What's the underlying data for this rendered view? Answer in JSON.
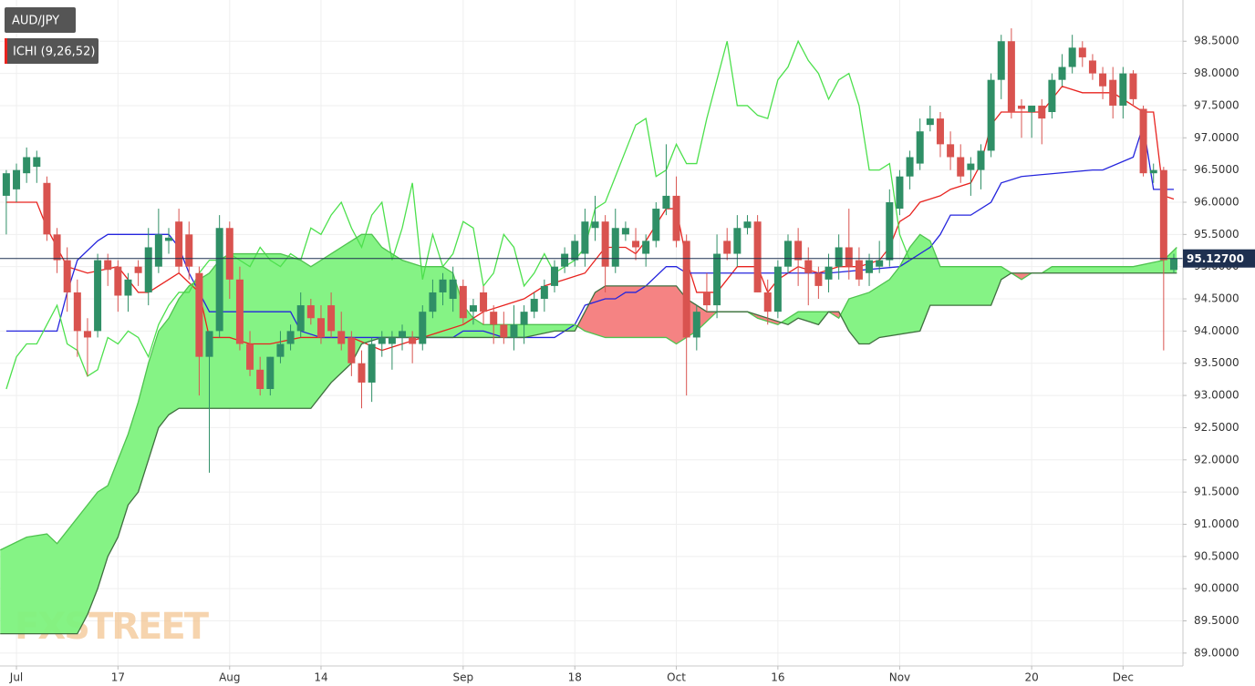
{
  "chart_data": {
    "type": "candlestick",
    "symbol": "AUD/JPY",
    "indicator": "ICHI (9,26,52)",
    "watermark": "FXSTREET",
    "up_color": "#2f8f66",
    "down_color": "#d9534f",
    "cloud_up_color": "#7ef27e",
    "cloud_down_color": "#f47c7c",
    "price_line_color": "#1e3050",
    "grid": true,
    "xlim": [
      -1.62,
      114.9
    ],
    "xticks": [
      {
        "value": 0,
        "label": "Jul"
      },
      {
        "value": 10,
        "label": "17"
      },
      {
        "value": 21,
        "label": "Aug"
      },
      {
        "value": 30,
        "label": "14"
      },
      {
        "value": 44,
        "label": "Sep"
      },
      {
        "value": 55,
        "label": "18"
      },
      {
        "value": 65,
        "label": "Oct"
      },
      {
        "value": 75,
        "label": "16"
      },
      {
        "value": 87,
        "label": "Nov"
      },
      {
        "value": 100,
        "label": "20"
      },
      {
        "value": 109,
        "label": "Dec"
      }
    ],
    "ylim": [
      88.8,
      99.14
    ],
    "yticks": [
      {
        "value": 89,
        "label": "89.0000"
      },
      {
        "value": 89.5,
        "label": "89.5000"
      },
      {
        "value": 90,
        "label": "90.0000"
      },
      {
        "value": 90.5,
        "label": "90.5000"
      },
      {
        "value": 91,
        "label": "91.0000"
      },
      {
        "value": 91.5,
        "label": "91.5000"
      },
      {
        "value": 92,
        "label": "92.0000"
      },
      {
        "value": 92.5,
        "label": "92.5000"
      },
      {
        "value": 93,
        "label": "93.0000"
      },
      {
        "value": 93.5,
        "label": "93.5000"
      },
      {
        "value": 94,
        "label": "94.0000"
      },
      {
        "value": 94.5,
        "label": "94.5000"
      },
      {
        "value": 95,
        "label": "95.0000"
      },
      {
        "value": 95.5,
        "label": "95.5000"
      },
      {
        "value": 96,
        "label": "96.0000"
      },
      {
        "value": 96.5,
        "label": "96.5000"
      },
      {
        "value": 97,
        "label": "97.0000"
      },
      {
        "value": 97.5,
        "label": "97.5000"
      },
      {
        "value": 98,
        "label": "98.0000"
      },
      {
        "value": 98.5,
        "label": "98.5000"
      }
    ],
    "last_price": {
      "value": 95.127,
      "label": "95.12700"
    },
    "x": [
      -1,
      0,
      1,
      2,
      3,
      4,
      5,
      6,
      7,
      8,
      9,
      10,
      11,
      12,
      13,
      14,
      15,
      16,
      17,
      18,
      19,
      20,
      21,
      22,
      23,
      24,
      25,
      26,
      27,
      28,
      29,
      30,
      31,
      32,
      33,
      34,
      35,
      36,
      37,
      38,
      39,
      40,
      41,
      42,
      43,
      44,
      45,
      46,
      47,
      48,
      49,
      50,
      51,
      52,
      53,
      54,
      55,
      56,
      57,
      58,
      59,
      60,
      61,
      62,
      63,
      64,
      65,
      66,
      67,
      68,
      69,
      70,
      71,
      72,
      73,
      74,
      75,
      76,
      77,
      78,
      79,
      80,
      81,
      82,
      83,
      84,
      85,
      86,
      87,
      88,
      89,
      90,
      91,
      92,
      93,
      94,
      95,
      96,
      97,
      98,
      99,
      100,
      101,
      102,
      103,
      104,
      105,
      106,
      107,
      108,
      109,
      110,
      111,
      112,
      113,
      114
    ],
    "open": [
      96.1,
      96.2,
      96.45,
      96.55,
      96.3,
      95.5,
      95.1,
      94.6,
      94.0,
      94.0,
      95.1,
      95.0,
      94.55,
      95.0,
      94.6,
      95.0,
      95.4,
      95.7,
      95.5,
      94.9,
      93.6,
      94.0,
      95.6,
      94.8,
      93.8,
      93.4,
      93.1,
      93.6,
      93.8,
      94.0,
      94.4,
      94.2,
      94.4,
      94.0,
      93.9,
      93.5,
      93.2,
      93.8,
      93.8,
      93.9,
      93.9,
      93.8,
      94.3,
      94.6,
      94.5,
      94.7,
      94.3,
      94.6,
      94.3,
      94.1,
      93.9,
      94.1,
      94.3,
      94.5,
      94.7,
      95.0,
      95.1,
      95.2,
      95.6,
      95.7,
      95.0,
      95.5,
      95.4,
      95.2,
      95.4,
      95.9,
      96.1,
      95.4,
      93.9,
      94.6,
      94.4,
      95.4,
      95.2,
      95.6,
      95.7,
      94.6,
      94.3,
      95.0,
      95.4,
      95.1,
      94.9,
      94.8,
      95.0,
      95.3,
      95.1,
      94.9,
      95.0,
      95.1,
      95.9,
      96.4,
      96.6,
      97.2,
      97.3,
      96.9,
      96.7,
      96.5,
      96.5,
      96.8,
      97.9,
      98.5,
      97.5,
      97.4,
      97.5,
      97.4,
      97.9,
      98.1,
      98.4,
      98.2,
      98.0,
      97.9,
      97.5,
      98.0,
      97.45,
      96.45,
      96.5,
      94.95
    ],
    "high": [
      96.5,
      96.6,
      96.85,
      96.8,
      96.4,
      95.6,
      95.3,
      94.8,
      94.2,
      95.2,
      95.2,
      95.1,
      94.9,
      95.1,
      95.6,
      95.9,
      95.6,
      95.9,
      95.7,
      95.0,
      94.0,
      95.8,
      95.7,
      95.0,
      94.0,
      93.6,
      93.6,
      94.0,
      94.1,
      94.6,
      94.5,
      94.4,
      94.6,
      94.3,
      94.0,
      93.7,
      93.9,
      94.0,
      94.0,
      94.1,
      94.0,
      94.4,
      94.8,
      94.9,
      95.0,
      94.8,
      94.5,
      94.7,
      94.4,
      94.3,
      94.4,
      94.4,
      94.6,
      94.8,
      95.1,
      95.3,
      95.5,
      95.9,
      96.1,
      95.8,
      95.9,
      95.7,
      95.6,
      95.5,
      96.0,
      96.9,
      96.4,
      95.5,
      94.4,
      94.9,
      95.5,
      95.6,
      95.8,
      95.8,
      95.8,
      94.8,
      95.1,
      95.5,
      95.6,
      95.3,
      95.0,
      95.2,
      95.5,
      95.9,
      95.3,
      95.2,
      95.4,
      96.2,
      96.5,
      96.8,
      97.3,
      97.5,
      97.4,
      97.1,
      96.9,
      96.7,
      96.9,
      98.0,
      98.6,
      98.7,
      97.6,
      97.5,
      97.6,
      98.0,
      98.3,
      98.6,
      98.5,
      98.3,
      98.1,
      98.1,
      98.1,
      98.05,
      97.5,
      96.6,
      96.55,
      95.2
    ],
    "low": [
      95.5,
      96.0,
      96.3,
      96.3,
      95.4,
      94.9,
      94.3,
      93.6,
      93.3,
      93.9,
      94.7,
      94.3,
      94.3,
      94.7,
      94.4,
      94.9,
      95.2,
      94.9,
      94.8,
      93.0,
      91.8,
      93.9,
      94.5,
      93.7,
      93.3,
      93.0,
      93.0,
      93.5,
      93.7,
      93.9,
      94.1,
      93.8,
      93.9,
      93.7,
      93.3,
      92.8,
      92.9,
      93.6,
      93.4,
      93.7,
      93.5,
      93.7,
      94.2,
      94.4,
      94.3,
      94.1,
      94.1,
      94.1,
      93.8,
      93.8,
      93.7,
      93.8,
      94.2,
      94.3,
      94.6,
      94.9,
      95.0,
      95.0,
      95.4,
      94.6,
      94.9,
      95.4,
      95.1,
      95.0,
      95.3,
      95.8,
      95.3,
      93.0,
      93.7,
      94.3,
      94.2,
      95.1,
      95.0,
      95.5,
      94.6,
      94.1,
      94.2,
      94.9,
      94.7,
      94.4,
      94.5,
      94.6,
      94.8,
      94.8,
      94.7,
      94.7,
      94.9,
      95.0,
      95.8,
      96.2,
      96.5,
      97.1,
      96.7,
      96.5,
      96.3,
      96.1,
      96.2,
      96.7,
      97.6,
      97.3,
      97.0,
      97.0,
      96.9,
      97.3,
      97.8,
      98.0,
      98.1,
      97.9,
      97.6,
      97.3,
      97.3,
      97.5,
      96.4,
      96.3,
      93.7,
      94.9
    ],
    "close": [
      96.45,
      96.5,
      96.7,
      96.7,
      95.5,
      95.1,
      94.6,
      94.0,
      93.9,
      95.1,
      94.95,
      94.55,
      94.8,
      94.9,
      95.3,
      95.5,
      95.45,
      95.0,
      95.0,
      93.6,
      94.0,
      95.6,
      94.8,
      93.8,
      93.4,
      93.1,
      93.6,
      93.8,
      94.0,
      94.4,
      94.2,
      93.9,
      94.0,
      93.8,
      93.5,
      93.2,
      93.8,
      93.9,
      93.9,
      94.0,
      93.8,
      94.3,
      94.6,
      94.8,
      94.8,
      94.2,
      94.4,
      94.3,
      94.1,
      93.9,
      94.1,
      94.3,
      94.5,
      94.7,
      95.0,
      95.2,
      95.4,
      95.7,
      95.7,
      95.0,
      95.6,
      95.6,
      95.3,
      95.4,
      95.9,
      96.1,
      95.4,
      93.9,
      94.3,
      94.4,
      95.2,
      95.2,
      95.6,
      95.7,
      94.6,
      94.3,
      95.0,
      95.4,
      95.1,
      94.9,
      94.7,
      95.0,
      95.3,
      95.0,
      94.8,
      95.1,
      95.1,
      96.0,
      96.4,
      96.7,
      97.1,
      97.3,
      96.9,
      96.7,
      96.4,
      96.6,
      96.8,
      97.9,
      98.5,
      97.4,
      97.45,
      97.5,
      97.3,
      97.9,
      98.1,
      98.4,
      98.25,
      98.0,
      97.8,
      97.5,
      98.0,
      97.6,
      96.45,
      96.5,
      95.1,
      95.13
    ],
    "series": [
      {
        "color": "#e8231f",
        "x": [
          -1,
          2,
          3,
          5,
          7,
          10,
          11,
          12,
          13,
          15,
          16,
          18,
          19,
          21,
          23,
          25,
          28,
          30,
          33,
          36,
          38,
          40,
          42,
          44,
          46,
          48,
          50,
          52,
          54,
          56,
          58,
          60,
          61,
          62,
          64,
          65,
          66,
          67,
          68,
          69,
          71,
          73,
          74,
          75,
          77,
          79,
          81,
          83,
          85,
          86,
          87,
          88,
          89,
          91,
          92,
          94,
          95,
          96,
          97,
          98,
          101,
          102,
          103,
          105,
          107,
          108,
          110,
          111,
          112,
          113,
          114
        ],
        "values": [
          96.0,
          96.0,
          95.6,
          95.0,
          94.9,
          95.0,
          94.8,
          94.6,
          94.6,
          94.8,
          94.9,
          94.6,
          93.9,
          93.9,
          93.8,
          93.8,
          93.9,
          93.9,
          93.9,
          93.7,
          93.8,
          93.9,
          94.0,
          94.1,
          94.3,
          94.4,
          94.5,
          94.7,
          94.8,
          94.9,
          95.3,
          95.3,
          95.2,
          95.4,
          95.9,
          95.9,
          95.1,
          94.6,
          94.6,
          94.6,
          95.0,
          95.0,
          94.6,
          94.8,
          95.0,
          94.9,
          95.0,
          95.0,
          95.1,
          95.3,
          95.7,
          95.8,
          96.0,
          96.1,
          96.2,
          96.3,
          96.6,
          97.2,
          97.4,
          97.4,
          97.4,
          97.6,
          97.8,
          97.7,
          97.7,
          97.7,
          97.5,
          97.4,
          97.4,
          96.1,
          96.05
        ]
      },
      {
        "color": "#2525dd",
        "x": [
          -1,
          4,
          5,
          6,
          8,
          9,
          15,
          16,
          17,
          18,
          19,
          27,
          28,
          30,
          43,
          44,
          46,
          48,
          53,
          55,
          56,
          58,
          59,
          60,
          61,
          62,
          64,
          65,
          66,
          70,
          80,
          87,
          90,
          91,
          92,
          94,
          96,
          97,
          99,
          106,
          107,
          110,
          111,
          112,
          114
        ],
        "values": [
          94.0,
          94.0,
          94.6,
          95.1,
          95.4,
          95.5,
          95.5,
          95.3,
          94.9,
          94.6,
          94.3,
          94.3,
          94.0,
          93.9,
          93.9,
          94.0,
          94.0,
          93.9,
          93.9,
          94.1,
          94.4,
          94.5,
          94.5,
          94.6,
          94.6,
          94.7,
          95.0,
          95.0,
          94.9,
          94.9,
          94.9,
          95.0,
          95.3,
          95.5,
          95.8,
          95.8,
          96.0,
          96.3,
          96.4,
          96.5,
          96.5,
          96.7,
          97.2,
          96.2,
          96.2
        ]
      },
      {
        "color": "#4de04d",
        "x": [
          -1,
          0,
          1,
          2,
          3,
          4,
          5,
          6,
          7,
          8,
          9,
          10,
          11,
          12,
          13,
          14,
          15,
          16,
          17,
          18,
          19,
          20,
          21,
          22,
          23,
          24,
          25,
          26,
          27,
          28,
          29,
          30,
          31,
          32,
          33,
          34,
          35,
          36,
          37,
          38,
          39,
          40,
          41,
          42,
          43,
          44,
          45,
          46,
          47,
          48,
          49,
          50,
          51,
          52,
          53,
          54,
          55,
          56,
          57,
          58,
          59,
          60,
          61,
          62,
          63,
          64,
          65,
          66,
          67,
          68,
          69,
          70,
          71,
          72,
          73,
          74,
          75,
          76,
          77,
          78,
          79,
          80,
          81,
          82,
          83,
          84,
          85,
          86,
          87,
          88
        ],
        "values": [
          93.1,
          93.6,
          93.8,
          93.8,
          94.1,
          94.4,
          93.8,
          93.7,
          93.3,
          93.4,
          93.9,
          93.8,
          94.0,
          93.9,
          93.6,
          94.1,
          94.4,
          94.6,
          94.6,
          94.9,
          95.1,
          95.1,
          95.2,
          95.1,
          95.0,
          95.3,
          95.1,
          95.0,
          95.2,
          95.1,
          95.6,
          95.5,
          95.8,
          96.0,
          95.6,
          95.3,
          95.8,
          96.0,
          95.1,
          95.6,
          96.3,
          94.8,
          95.5,
          95.0,
          95.2,
          95.7,
          95.6,
          94.7,
          94.9,
          95.5,
          95.3,
          94.7,
          94.9,
          95.2,
          94.9,
          95.0,
          95.1,
          95.3,
          95.9,
          96.0,
          96.4,
          96.8,
          97.2,
          97.3,
          96.4,
          96.5,
          96.9,
          96.6,
          96.6,
          97.3,
          97.9,
          98.5,
          97.5,
          97.5,
          97.35,
          97.3,
          97.9,
          98.1,
          98.5,
          98.2,
          98.0,
          97.6,
          97.9,
          98.0,
          97.5,
          96.5,
          96.5,
          96.6,
          95.5,
          95.1
        ]
      },
      {
        "color": "#4fc34f",
        "x": [
          -1.6,
          1,
          3,
          4,
          5,
          7,
          8,
          9,
          10,
          11,
          12,
          13,
          14,
          15,
          16,
          17,
          18,
          19,
          20,
          21,
          23,
          26,
          28,
          29,
          30,
          31,
          33,
          34,
          35,
          36,
          37,
          38,
          40,
          42,
          43,
          44,
          45,
          46,
          47,
          50,
          53,
          55,
          56,
          58,
          64,
          65,
          67,
          69,
          72,
          73,
          75,
          77,
          80,
          81,
          82,
          84,
          86,
          87,
          88,
          89,
          90,
          91,
          97,
          99,
          100,
          101,
          102,
          110,
          113,
          114.3
        ],
        "values": [
          90.6,
          90.8,
          90.85,
          90.7,
          90.9,
          91.3,
          91.5,
          91.6,
          92.0,
          92.4,
          92.9,
          93.5,
          94.0,
          94.2,
          94.5,
          94.7,
          94.8,
          94.9,
          95.1,
          95.2,
          95.2,
          95.2,
          95.1,
          95.0,
          95.1,
          95.2,
          95.4,
          95.5,
          95.5,
          95.3,
          95.2,
          95.1,
          95.0,
          95.0,
          94.9,
          94.4,
          94.2,
          94.1,
          94.1,
          94.1,
          94.1,
          94.1,
          94.0,
          93.9,
          93.9,
          93.8,
          94.0,
          94.3,
          94.3,
          94.2,
          94.1,
          94.3,
          94.3,
          94.2,
          94.5,
          94.6,
          94.8,
          95.0,
          95.3,
          95.5,
          95.4,
          95.0,
          95.0,
          94.8,
          94.9,
          94.9,
          95.0,
          95.0,
          95.1,
          95.3
        ]
      },
      {
        "color": "#3f6f3f",
        "x": [
          -1.6,
          6,
          7,
          8,
          9,
          10,
          11,
          12,
          13,
          14,
          15,
          16,
          29,
          30,
          31,
          33,
          34,
          36,
          44,
          50,
          53,
          55,
          56,
          57,
          58,
          65,
          66,
          68,
          72,
          74,
          76,
          77,
          79,
          80,
          81,
          82,
          83,
          84,
          85,
          89,
          90,
          96,
          97,
          98,
          114.3
        ],
        "values": [
          89.3,
          89.3,
          89.6,
          90.0,
          90.5,
          90.8,
          91.3,
          91.5,
          92.0,
          92.5,
          92.7,
          92.8,
          92.8,
          93.0,
          93.2,
          93.5,
          93.8,
          93.9,
          93.9,
          93.9,
          94.0,
          94.0,
          94.3,
          94.6,
          94.7,
          94.7,
          94.5,
          94.3,
          94.3,
          94.2,
          94.1,
          94.2,
          94.1,
          94.3,
          94.3,
          94.0,
          93.8,
          93.8,
          93.9,
          94.0,
          94.4,
          94.4,
          94.8,
          94.9,
          94.9
        ]
      }
    ]
  }
}
